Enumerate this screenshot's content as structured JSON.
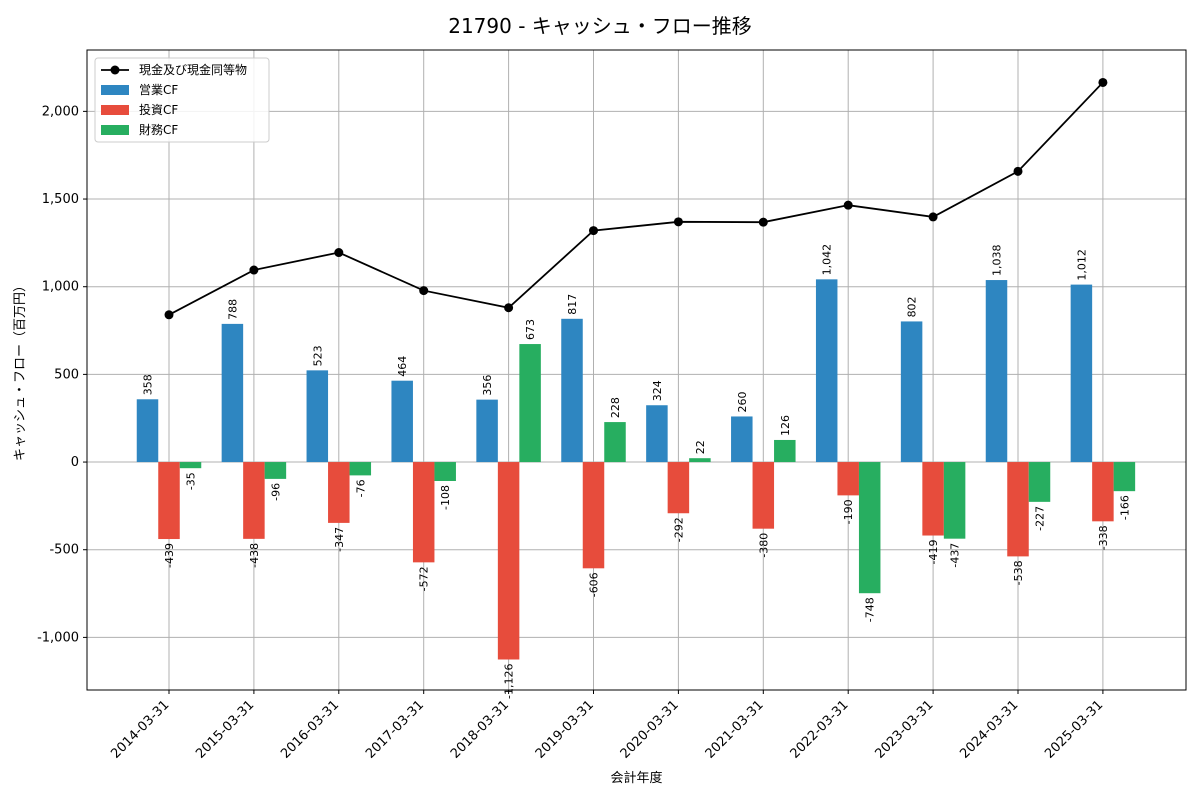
{
  "chart_data": {
    "type": "bar",
    "title": "21790 - キャッシュ・フロー推移",
    "xlabel": "会計年度",
    "ylabel": "キャッシュ・フロー（百万円）",
    "categories": [
      "2014-03-31",
      "2015-03-31",
      "2016-03-31",
      "2017-03-31",
      "2018-03-31",
      "2019-03-31",
      "2020-03-31",
      "2021-03-31",
      "2022-03-31",
      "2023-03-31",
      "2024-03-31",
      "2025-03-31"
    ],
    "ylim": [
      -1300,
      2350
    ],
    "yticks": [
      -1000,
      -500,
      0,
      500,
      1000,
      1500,
      2000
    ],
    "ytick_labels": [
      "-1,000",
      "-500",
      "0",
      "500",
      "1,000",
      "1,500",
      "2,000"
    ],
    "grid": true,
    "legend_position": "top-left",
    "series": [
      {
        "name": "営業CF",
        "kind": "bar",
        "color": "#2e86c1",
        "values": [
          358,
          788,
          523,
          464,
          356,
          817,
          324,
          260,
          1042,
          802,
          1038,
          1012
        ],
        "labels": [
          "358",
          "788",
          "523",
          "464",
          "356",
          "817",
          "324",
          "260",
          "1,042",
          "802",
          "1,038",
          "1,012"
        ]
      },
      {
        "name": "投資CF",
        "kind": "bar",
        "color": "#e74c3c",
        "values": [
          -439,
          -438,
          -347,
          -572,
          -1126,
          -606,
          -292,
          -380,
          -190,
          -419,
          -538,
          -338
        ],
        "labels": [
          "-439",
          "-438",
          "-347",
          "-572",
          "-1,126",
          "-606",
          "-292",
          "-380",
          "-190",
          "-419",
          "-538",
          "-338"
        ]
      },
      {
        "name": "財務CF",
        "kind": "bar",
        "color": "#27ae60",
        "values": [
          -35,
          -96,
          -76,
          -108,
          673,
          228,
          22,
          126,
          -748,
          -437,
          -227,
          -166
        ],
        "labels": [
          "-35",
          "-96",
          "-76",
          "-108",
          "673",
          "228",
          "22",
          "126",
          "-748",
          "-437",
          "-227",
          "-166"
        ]
      },
      {
        "name": "現金及び現金同等物",
        "kind": "line",
        "color": "#000000",
        "values": [
          840,
          1095,
          1195,
          978,
          880,
          1320,
          1370,
          1368,
          1465,
          1398,
          1658,
          2165
        ]
      }
    ]
  }
}
